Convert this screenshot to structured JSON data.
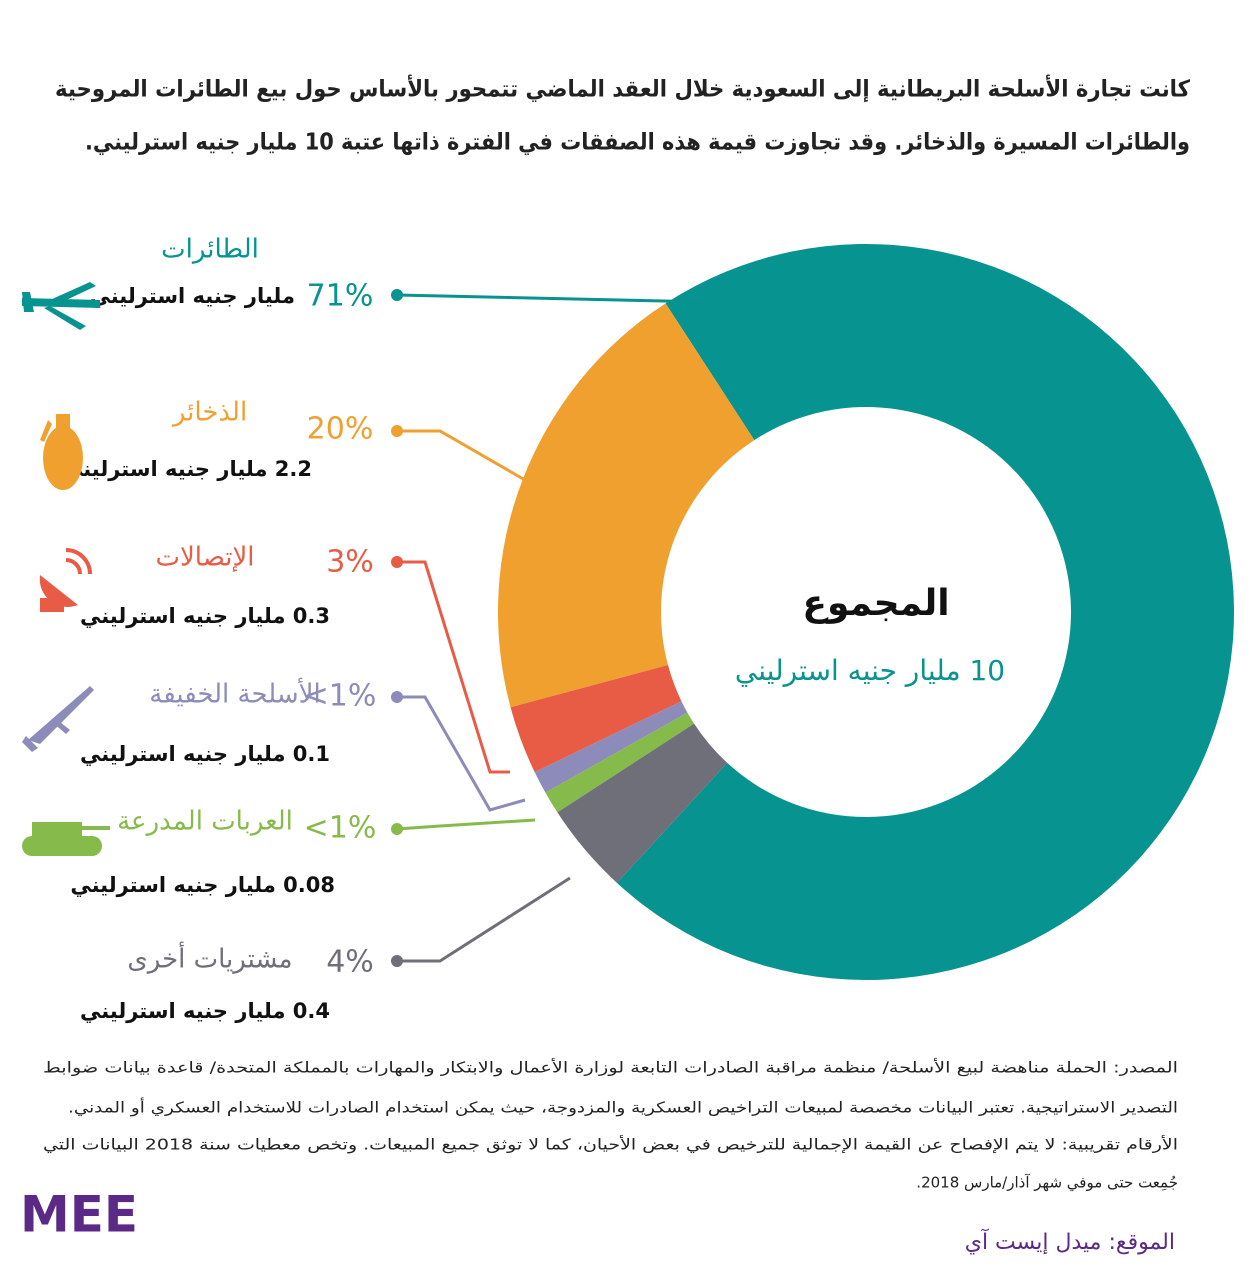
{
  "chart_data": {
    "type": "pie",
    "title_lines": [
      "كانت تجارة الأسلحة البريطانية إلى السعودية خلال العقد الماضي تتمحور بالأساس حول بيع الطائرات المروحية",
      "والطائرات المسيرة والذخائر. وقد تجاوزت قيمة هذه الصفقات في الفترة ذاتها عتبة 10 مليار جنيه استرليني."
    ],
    "categories": [
      "الطائرات",
      "الذخائر",
      "الإتصالات",
      "الأسلحة الخفيفة",
      "العربات المدرعة",
      "مشتريات أخرى"
    ],
    "values": [
      71,
      20,
      3,
      1,
      1,
      4
    ],
    "value_labels": [
      "71%",
      "20%",
      "3%",
      "<1%",
      "<1%",
      "4%"
    ],
    "amount_labels": [
      "مليار جنيه استرليني",
      "2.2 مليار جنيه استرليني",
      "0.3 مليار جنيه استرليني",
      "0.1 مليار جنيه استرليني",
      "0.08 مليار جنيه استرليني",
      "0.4 مليار جنيه استرليني"
    ],
    "colors": [
      "#07938f",
      "#f0a02e",
      "#e85c45",
      "#8c8bb9",
      "#86bb4b",
      "#6f6f7a"
    ],
    "center_title": "المجموع",
    "center_value": "10 مليار جنيه استرليني",
    "source_lines": [
      "المصدر: الحملة مناهضة لبيع الأسلحة/ منظمة مراقبة الصادرات التابعة لوزارة الأعمال والابتكار والمهارات بالمملكة المتحدة/ قاعدة بيانات ضوابط",
      "التصدير الاستراتيجية. تعتبر البيانات مخصصة لمبيعات التراخيص العسكرية والمزدوجة، حيث يمكن استخدام الصادرات للاستخدام العسكري أو المدني.",
      "الأرقام تقريبية: لا يتم الإفصاح عن القيمة الإجمالية للترخيص في بعض الأحيان، كما لا توثق جميع المبيعات. وتخص معطيات سنة 2018 البيانات التي",
      "جُمِعت حتى موفي شهر آذار/مارس 2018."
    ]
  },
  "footer": {
    "logo": "MEE",
    "site": "الموقع: ميدل إيست آي"
  }
}
